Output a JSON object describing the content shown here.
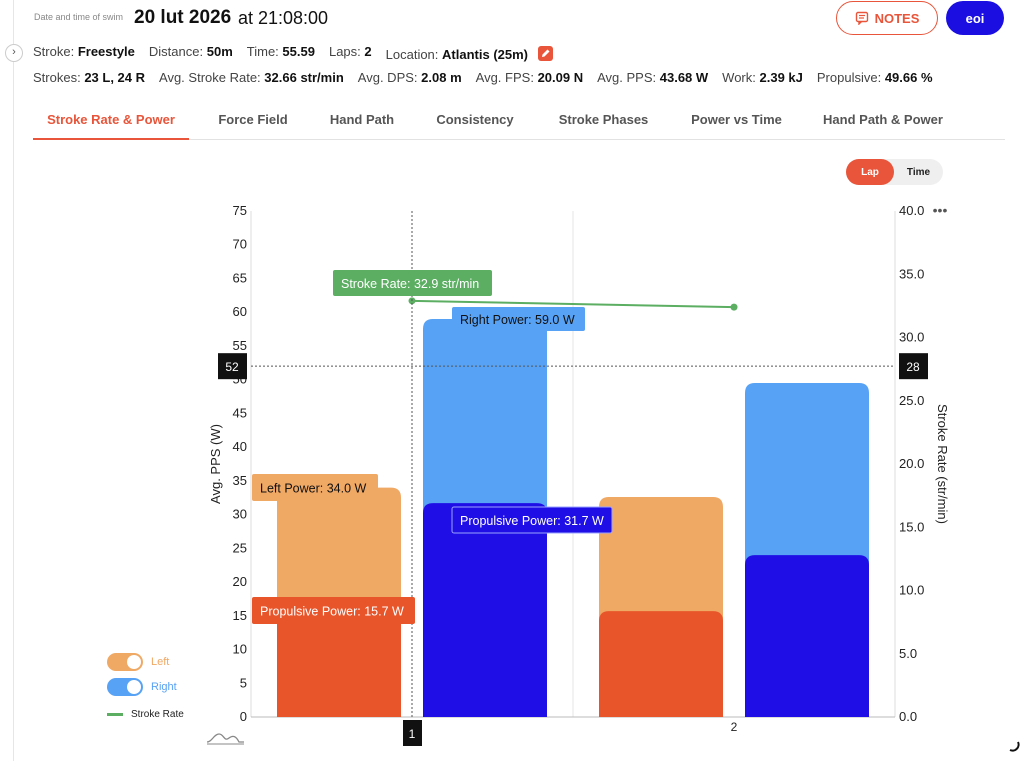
{
  "header": {
    "datetime_label": "Date and time of swim",
    "date": "20 lut 2026",
    "at": "at",
    "time": "21:08:00",
    "notes_label": "NOTES",
    "user_initials": "eoi"
  },
  "summary_row1": [
    {
      "key": "Stroke:",
      "value": "Freestyle"
    },
    {
      "key": "Distance:",
      "value": "50m"
    },
    {
      "key": "Time:",
      "value": "55.59"
    },
    {
      "key": "Laps:",
      "value": "2"
    },
    {
      "key": "Location:",
      "value": "Atlantis (25m)"
    }
  ],
  "summary_row2": [
    {
      "key": "Strokes:",
      "value": "23 L, 24 R"
    },
    {
      "key": "Avg. Stroke Rate:",
      "value": "32.66 str/min"
    },
    {
      "key": "Avg. DPS:",
      "value": "2.08 m"
    },
    {
      "key": "Avg. FPS:",
      "value": "20.09 N"
    },
    {
      "key": "Avg. PPS:",
      "value": "43.68 W"
    },
    {
      "key": "Work:",
      "value": "2.39 kJ"
    },
    {
      "key": "Propulsive:",
      "value": "49.66 %"
    }
  ],
  "tabs": [
    {
      "label": "Stroke Rate & Power",
      "active": true
    },
    {
      "label": "Force Field",
      "active": false
    },
    {
      "label": "Hand Path",
      "active": false
    },
    {
      "label": "Consistency",
      "active": false
    },
    {
      "label": "Stroke Phases",
      "active": false
    },
    {
      "label": "Power vs Time",
      "active": false
    },
    {
      "label": "Hand Path & Power",
      "active": false
    }
  ],
  "view_toggle": {
    "options": [
      "Lap",
      "Time"
    ],
    "selected": "Lap"
  },
  "legend": {
    "left": "Left",
    "right": "Right",
    "stroke_rate": "Stroke Rate"
  },
  "colors": {
    "accent": "#e8553a",
    "left_power": "#f0a865",
    "left_propulsive": "#e8552a",
    "right_power": "#57a2f4",
    "right_propulsive": "#1f0fe6",
    "stroke_rate": "#5bae62",
    "tooltip_green": "#5bae62"
  },
  "chart_data": {
    "type": "bar",
    "categories": [
      "1",
      "2"
    ],
    "y_left_label": "Avg. PPS (W)",
    "y_right_label": "Stroke Rate (str/min)",
    "y_left_range": [
      0,
      75
    ],
    "y_right_range": [
      0,
      40
    ],
    "y_left_ticks": [
      "0",
      "5",
      "10",
      "15",
      "20",
      "25",
      "30",
      "35",
      "40",
      "45",
      "50",
      "55",
      "60",
      "65",
      "70",
      "75"
    ],
    "y_right_ticks": [
      "0.0",
      "5.0",
      "10.0",
      "15.0",
      "20.0",
      "25.0",
      "30.0",
      "35.0",
      "40.0"
    ],
    "series": [
      {
        "name": "Left",
        "power": [
          34.0,
          32.6
        ],
        "propulsive": [
          15.7,
          15.7
        ]
      },
      {
        "name": "Right",
        "power": [
          59.0,
          49.5
        ],
        "propulsive": [
          31.7,
          24.0
        ]
      },
      {
        "name": "Stroke Rate",
        "values": [
          32.9,
          32.4
        ]
      }
    ],
    "crosshair": {
      "left_value": "52",
      "right_value": "28",
      "x_label": "1"
    },
    "tooltips": {
      "stroke_rate": "Stroke Rate: 32.9 str/min",
      "right_power": "Right Power: 59.0 W",
      "left_power": "Left Power: 34.0 W",
      "propulsive_right": "Propulsive Power: 31.7 W",
      "propulsive_left": "Propulsive  Power: 15.7 W"
    }
  }
}
